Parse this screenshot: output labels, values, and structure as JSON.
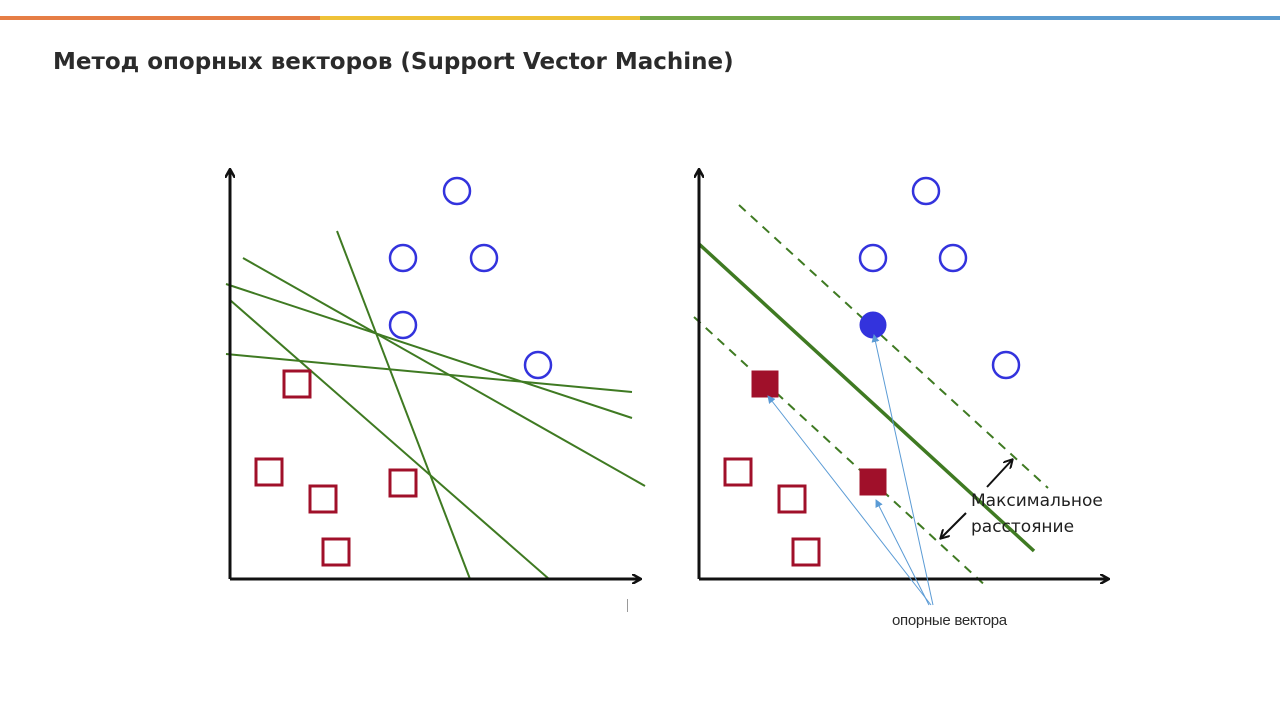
{
  "slide": {
    "title": "Метод опорных векторов (Support Vector Machine)",
    "top_bar_colors": [
      "#e67e45",
      "#efc238",
      "#74a84a",
      "#5b9bcf"
    ]
  },
  "colors": {
    "circle": "#3333dd",
    "square": "#a0102a",
    "line": "#3f7a22",
    "axis": "#111111",
    "pointer": "#5b9bd5"
  },
  "annotations": {
    "margin_line1": "Максимальное",
    "margin_line2": "расстояние",
    "support_vectors": "опорные вектора"
  }
}
